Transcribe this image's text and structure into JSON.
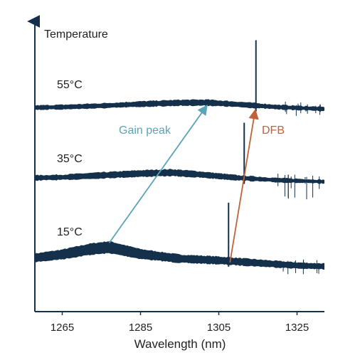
{
  "chart_data": {
    "type": "line",
    "title": "",
    "xlabel": "Wavelength (nm)",
    "ylabel": "Temperature",
    "xlim": [
      1258,
      1332
    ],
    "xticks": [
      1265,
      1285,
      1305,
      1325
    ],
    "grid": false,
    "legend": "none",
    "colors": {
      "spectrum": "#14304a",
      "axis": "#14304a",
      "gain_arrow": "#5aa3b8",
      "dfb_arrow": "#c0623a",
      "text": "#222222"
    },
    "series": [
      {
        "name": "15°C",
        "x": [
          1258,
          1265,
          1272,
          1277,
          1285,
          1295,
          1305,
          1315,
          1325,
          1332
        ],
        "y": [
          0.42,
          0.58,
          0.82,
          0.92,
          0.6,
          0.38,
          0.3,
          0.18,
          0.06,
          0.02
        ],
        "peak_x": 1307.5
      },
      {
        "name": "35°C",
        "x": [
          1258,
          1265,
          1275,
          1285,
          1293,
          1300,
          1310,
          1320,
          1332
        ],
        "y": [
          0.5,
          0.55,
          0.72,
          0.88,
          0.96,
          0.8,
          0.5,
          0.3,
          0.16
        ],
        "peak_x": 1311.5
      },
      {
        "name": "55°C",
        "x": [
          1258,
          1265,
          1275,
          1285,
          1295,
          1302,
          1310,
          1320,
          1332
        ],
        "y": [
          0.45,
          0.5,
          0.62,
          0.78,
          0.9,
          0.92,
          0.75,
          0.5,
          0.32
        ],
        "peak_x": 1314.5
      }
    ],
    "annotations": [
      {
        "text": "Gain peak",
        "arrow_from": 1277,
        "arrow_to": 1302
      },
      {
        "text": "DFB",
        "arrow_from": 1307.5,
        "arrow_to": 1314.5
      }
    ]
  }
}
